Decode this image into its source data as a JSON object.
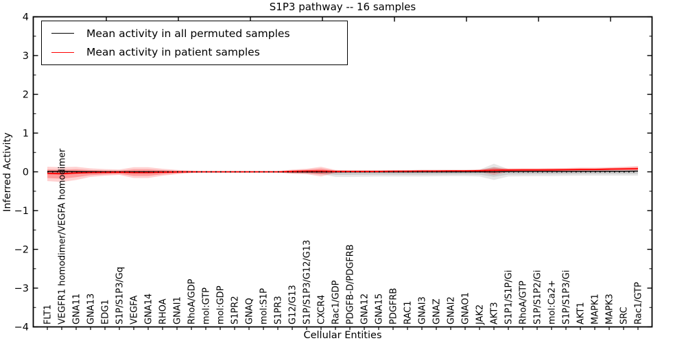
{
  "title": "S1P3 pathway -- 16 samples",
  "axes": {
    "xlabel": "Cellular Entities",
    "ylabel": "Inferred Activity",
    "ylim": [
      -4,
      4
    ],
    "ytick_labels": [
      "4",
      "3",
      "2",
      "1",
      "0",
      "−1",
      "−2",
      "−3",
      "−4"
    ],
    "ytick_values": [
      4,
      3,
      2,
      1,
      0,
      -1,
      -2,
      -3,
      -4
    ]
  },
  "legend": {
    "items": [
      {
        "label": "Mean activity in all permuted samples",
        "color": "#000000"
      },
      {
        "label": "Mean activity in patient samples",
        "color": "#ff0000"
      }
    ]
  },
  "chart_data": {
    "type": "line",
    "title": "S1P3 pathway -- 16 samples",
    "xlabel": "Cellular Entities",
    "ylabel": "Inferred Activity",
    "ylim": [
      -4,
      4
    ],
    "grid": false,
    "legend_position": "upper left",
    "zero_reference_line": 0,
    "categories": [
      "FLT1",
      "VEGFR1 homodimer/VEGFA homodimer",
      "GNA11",
      "GNA13",
      "EDG1",
      "S1P/S1P3/Gq",
      "VEGFA",
      "GNA14",
      "RHOA",
      "GNAI1",
      "RhoA/GDP",
      "mol:GTP",
      "mol:GDP",
      "S1PR2",
      "GNAQ",
      "mol:S1P",
      "S1PR3",
      "G12/G13",
      "S1P/S1P3/G12/G13",
      "CXCR4",
      "Rac1/GDP",
      "PDGFB-D/PDGFRB",
      "GNA12",
      "GNA15",
      "PDGFRB",
      "RAC1",
      "GNAI3",
      "GNAZ",
      "GNAI2",
      "GNAO1",
      "JAK2",
      "AKT3",
      "S1P1/S1P/Gi",
      "RhoA/GTP",
      "S1P/S1P2/Gi",
      "mol:Ca2+",
      "S1P/S1P3/Gi",
      "AKT1",
      "MAPK1",
      "MAPK3",
      "SRC",
      "Rac1/GTP"
    ],
    "series": [
      {
        "name": "Mean activity in all permuted samples",
        "color": "#000000",
        "band_color": "#737373",
        "values": [
          0.01,
          0.01,
          0.008,
          0.005,
          0.003,
          0.002,
          0.002,
          0.002,
          0.002,
          0.001,
          0,
          0,
          0,
          0,
          0,
          0,
          0,
          0,
          0,
          0,
          0,
          0,
          0,
          0,
          0,
          0,
          0,
          0,
          0,
          0,
          0,
          0,
          0.005,
          0.008,
          0.01,
          0.01,
          0.01,
          0.012,
          0.012,
          0.015,
          0.015,
          0.018
        ],
        "band_upper": [
          0.04,
          0.045,
          0.03,
          0.02,
          0.018,
          0.015,
          0.015,
          0.015,
          0.012,
          0.01,
          0.008,
          0.006,
          0.006,
          0.006,
          0.006,
          0.006,
          0.01,
          0.03,
          0.035,
          0.04,
          0.04,
          0.04,
          0.04,
          0.04,
          0.045,
          0.045,
          0.05,
          0.05,
          0.05,
          0.05,
          0.055,
          0.21,
          0.07,
          0.06,
          0.06,
          0.06,
          0.055,
          0.05,
          0.05,
          0.05,
          0.05,
          0.05
        ],
        "band_lower": [
          -0.06,
          -0.07,
          -0.05,
          -0.03,
          -0.02,
          -0.015,
          -0.015,
          -0.015,
          -0.012,
          -0.01,
          -0.008,
          -0.006,
          -0.006,
          -0.006,
          -0.006,
          -0.006,
          -0.01,
          -0.04,
          -0.05,
          -0.06,
          -0.13,
          -0.13,
          -0.125,
          -0.12,
          -0.12,
          -0.12,
          -0.12,
          -0.115,
          -0.11,
          -0.11,
          -0.12,
          -0.21,
          -0.12,
          -0.115,
          -0.11,
          -0.11,
          -0.105,
          -0.1,
          -0.1,
          -0.1,
          -0.1,
          -0.1
        ]
      },
      {
        "name": "Mean activity in patient samples",
        "color": "#ff0000",
        "band_color": "#ff0000",
        "values": [
          -0.04,
          -0.05,
          -0.03,
          -0.02,
          -0.015,
          -0.01,
          -0.02,
          -0.02,
          -0.01,
          -0.005,
          0,
          0,
          0,
          0,
          0,
          0,
          0,
          0.01,
          0.02,
          0.02,
          0.01,
          0.01,
          0.01,
          0.01,
          0.015,
          0.015,
          0.02,
          0.02,
          0.025,
          0.025,
          0.03,
          0.04,
          0.045,
          0.05,
          0.05,
          0.05,
          0.055,
          0.06,
          0.06,
          0.07,
          0.075,
          0.08
        ],
        "band_upper": [
          0.13,
          0.12,
          0.13,
          0.09,
          0.07,
          0.06,
          0.12,
          0.12,
          0.08,
          0.05,
          0.03,
          0.012,
          0.01,
          0.01,
          0.01,
          0.012,
          0.02,
          0.06,
          0.08,
          0.13,
          0.05,
          0.04,
          0.04,
          0.04,
          0.04,
          0.045,
          0.05,
          0.05,
          0.05,
          0.05,
          0.06,
          0.12,
          0.09,
          0.09,
          0.09,
          0.1,
          0.1,
          0.11,
          0.11,
          0.12,
          0.13,
          0.15
        ],
        "band_lower": [
          -0.24,
          -0.26,
          -0.21,
          -0.13,
          -0.1,
          -0.08,
          -0.16,
          -0.16,
          -0.1,
          -0.06,
          -0.03,
          -0.012,
          -0.01,
          -0.01,
          -0.01,
          -0.012,
          -0.02,
          -0.05,
          -0.06,
          -0.12,
          -0.03,
          -0.02,
          -0.02,
          -0.02,
          -0.02,
          -0.02,
          -0.01,
          -0.01,
          -0.01,
          -0.005,
          -0.005,
          -0.08,
          0,
          0.005,
          0.01,
          0.01,
          0.01,
          0.015,
          0.02,
          0.02,
          0.025,
          0.03
        ]
      }
    ]
  }
}
